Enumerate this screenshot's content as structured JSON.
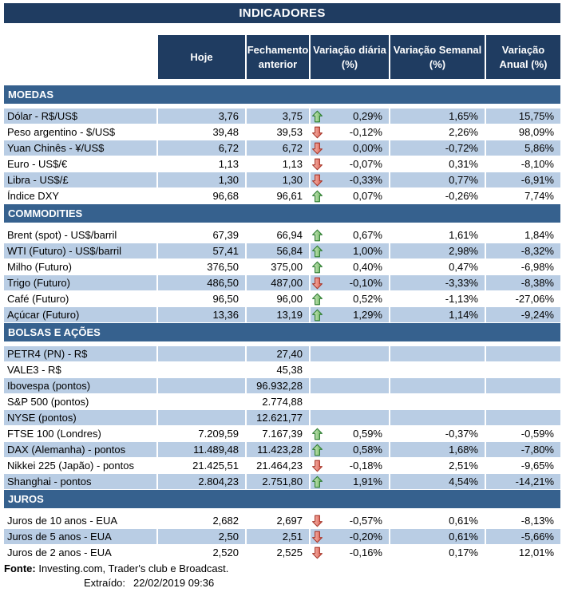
{
  "title": "INDICADORES",
  "columns": [
    {
      "id": "hoje",
      "lines": [
        "Hoje"
      ]
    },
    {
      "id": "fechamento-anterior",
      "lines": [
        "Fechamento",
        "anterior"
      ]
    },
    {
      "id": "variacao-diaria",
      "lines": [
        "Variação diária",
        "(%)"
      ]
    },
    {
      "id": "variacao-semanal",
      "lines": [
        "Variação Semanal",
        "(%)"
      ]
    },
    {
      "id": "variacao-anual",
      "lines": [
        "Variação",
        "Anual (%)"
      ]
    }
  ],
  "sections": [
    {
      "label": "MOEDAS",
      "rows": [
        {
          "label": "Dólar - R$/US$",
          "hoje": "3,76",
          "fech": "3,75",
          "arrow": "up",
          "dia": "0,29%",
          "sem": "1,65%",
          "ano": "15,75%"
        },
        {
          "label": "Peso argentino - $/US$",
          "hoje": "39,48",
          "fech": "39,53",
          "arrow": "down",
          "dia": "-0,12%",
          "sem": "2,26%",
          "ano": "98,09%"
        },
        {
          "label": "Yuan Chinês - ¥/US$",
          "hoje": "6,72",
          "fech": "6,72",
          "arrow": "down",
          "dia": "0,00%",
          "sem": "-0,72%",
          "ano": "5,86%"
        },
        {
          "label": "Euro - US$/€",
          "hoje": "1,13",
          "fech": "1,13",
          "arrow": "down",
          "dia": "-0,07%",
          "sem": "0,31%",
          "ano": "-8,10%"
        },
        {
          "label": "Libra - US$/£",
          "hoje": "1,30",
          "fech": "1,30",
          "arrow": "down",
          "dia": "-0,33%",
          "sem": "0,77%",
          "ano": "-6,91%"
        },
        {
          "label": "Índice DXY",
          "hoje": "96,68",
          "fech": "96,61",
          "arrow": "up",
          "dia": "0,07%",
          "sem": "-0,26%",
          "ano": "7,74%"
        }
      ]
    },
    {
      "label": "COMMODITIES",
      "rows": [
        {
          "label": "Brent (spot) - US$/barril",
          "hoje": "67,39",
          "fech": "66,94",
          "arrow": "up",
          "dia": "0,67%",
          "sem": "1,61%",
          "ano": "1,84%"
        },
        {
          "label": "WTI (Futuro) - US$/barril",
          "hoje": "57,41",
          "fech": "56,84",
          "arrow": "up",
          "dia": "1,00%",
          "sem": "2,98%",
          "ano": "-8,32%"
        },
        {
          "label": "Milho (Futuro)",
          "hoje": "376,50",
          "fech": "375,00",
          "arrow": "up",
          "dia": "0,40%",
          "sem": "0,47%",
          "ano": "-6,98%"
        },
        {
          "label": "Trigo (Futuro)",
          "hoje": "486,50",
          "fech": "487,00",
          "arrow": "down",
          "dia": "-0,10%",
          "sem": "-3,33%",
          "ano": "-8,38%"
        },
        {
          "label": "Café (Futuro)",
          "hoje": "96,50",
          "fech": "96,00",
          "arrow": "up",
          "dia": "0,52%",
          "sem": "-1,13%",
          "ano": "-27,06%"
        },
        {
          "label": "Açúcar (Futuro)",
          "hoje": "13,36",
          "fech": "13,19",
          "arrow": "up",
          "dia": "1,29%",
          "sem": "1,14%",
          "ano": "-9,24%"
        }
      ]
    },
    {
      "label": "BOLSAS E AÇÕES",
      "rows": [
        {
          "label": "PETR4 (PN) - R$",
          "hoje": "",
          "fech": "27,40",
          "arrow": null,
          "dia": "",
          "sem": "",
          "ano": ""
        },
        {
          "label": "VALE3 - R$",
          "hoje": "",
          "fech": "45,38",
          "arrow": null,
          "dia": "",
          "sem": "",
          "ano": ""
        },
        {
          "label": "Ibovespa (pontos)",
          "hoje": "",
          "fech": "96.932,28",
          "arrow": null,
          "dia": "",
          "sem": "",
          "ano": ""
        },
        {
          "label": "S&P 500 (pontos)",
          "hoje": "",
          "fech": "2.774,88",
          "arrow": null,
          "dia": "",
          "sem": "",
          "ano": ""
        },
        {
          "label": "NYSE (pontos)",
          "hoje": "",
          "fech": "12.621,77",
          "arrow": null,
          "dia": "",
          "sem": "",
          "ano": ""
        },
        {
          "label": "FTSE 100 (Londres)",
          "hoje": "7.209,59",
          "fech": "7.167,39",
          "arrow": "up",
          "dia": "0,59%",
          "sem": "-0,37%",
          "ano": "-0,59%"
        },
        {
          "label": "DAX (Alemanha) - pontos",
          "hoje": "11.489,48",
          "fech": "11.423,28",
          "arrow": "up",
          "dia": "0,58%",
          "sem": "1,68%",
          "ano": "-7,80%"
        },
        {
          "label": "Nikkei 225 (Japão) - pontos",
          "hoje": "21.425,51",
          "fech": "21.464,23",
          "arrow": "down",
          "dia": "-0,18%",
          "sem": "2,51%",
          "ano": "-9,65%"
        },
        {
          "label": "Shanghai - pontos",
          "hoje": "2.804,23",
          "fech": "2.751,80",
          "arrow": "up",
          "dia": "1,91%",
          "sem": "4,54%",
          "ano": "-14,21%"
        }
      ]
    },
    {
      "label": "JUROS",
      "rows": [
        {
          "label": "Juros de 10 anos - EUA",
          "hoje": "2,682",
          "fech": "2,697",
          "arrow": "down",
          "dia": "-0,57%",
          "sem": "0,61%",
          "ano": "-8,13%"
        },
        {
          "label": "Juros de 5 anos - EUA",
          "hoje": "2,50",
          "fech": "2,51",
          "arrow": "down",
          "dia": "-0,20%",
          "sem": "0,61%",
          "ano": "-5,66%"
        },
        {
          "label": "Juros de 2 anos - EUA",
          "hoje": "2,520",
          "fech": "2,525",
          "arrow": "down",
          "dia": "-0,16%",
          "sem": "0,17%",
          "ano": "12,01%"
        }
      ]
    }
  ],
  "footer": {
    "fonte_label": "Fonte:",
    "fonte_text": "Investing.com, Trader's club e Broadcast.",
    "extraido_label": "Extraído:",
    "extraido_value": "22/02/2019 09:36"
  },
  "colors": {
    "header_navy": "#1f3c61",
    "section_blue": "#36618e",
    "stripe_blue": "#b9cde4",
    "up_arrow_green": "#2e7d33",
    "down_arrow_red": "#a8382c"
  }
}
